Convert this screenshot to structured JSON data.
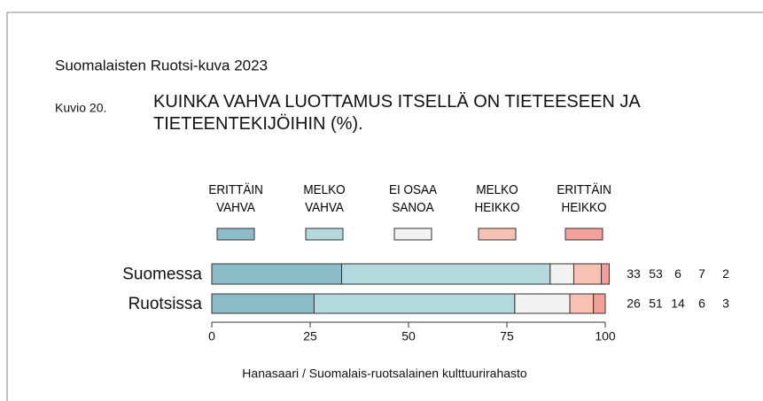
{
  "chart_data": {
    "type": "stacked-bar-horizontal",
    "subtitle": "Suomalaisten Ruotsi-kuva 2023",
    "figure_label": "Kuvio 20.",
    "title": "KUINKA VAHVA LUOTTAMUS ITSELLÄ ON TIETEESEEN JA TIETEENTEKIJÖIHIN (%).",
    "source": "Hanasaari / Suomalais-ruotsalainen kulttuurirahasto",
    "categories": [
      "Suomessa",
      "Ruotsissa"
    ],
    "series": [
      {
        "name": "ERITTÄIN VAHVA",
        "color": "#8bbcc8",
        "values": [
          33,
          26
        ]
      },
      {
        "name": "MELKO VAHVA",
        "color": "#b4d9dc",
        "values": [
          53,
          51
        ]
      },
      {
        "name": "EI OSAA SANOA",
        "color": "#f2f2f2",
        "values": [
          6,
          14
        ]
      },
      {
        "name": "MELKO HEIKKO",
        "color": "#f7c2b4",
        "values": [
          7,
          6
        ]
      },
      {
        "name": "ERITTÄIN HEIKKO",
        "color": "#f4a09a",
        "values": [
          2,
          3
        ]
      }
    ],
    "xlim": [
      0,
      100
    ],
    "xticks": [
      0,
      25,
      50,
      75,
      100
    ]
  }
}
